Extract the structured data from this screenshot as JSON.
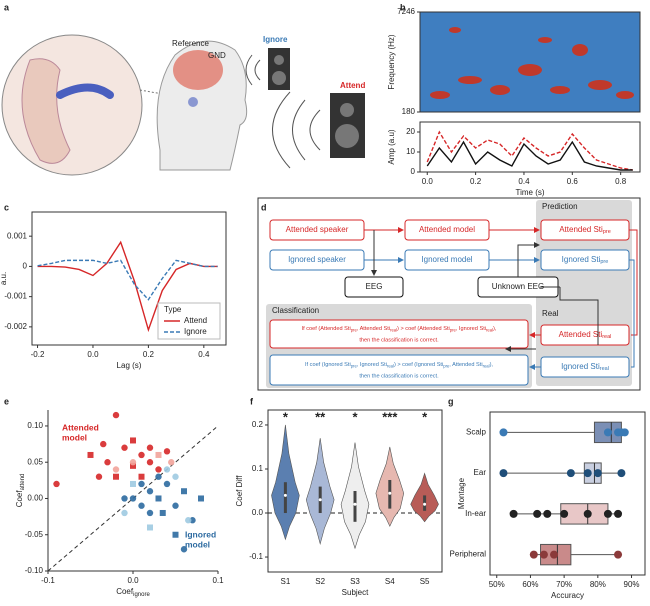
{
  "illustration": {
    "panel_label": "a",
    "reference": "Reference",
    "gnd": "GND",
    "ignore": "Ignore",
    "attend": "Attend"
  },
  "diagram": {
    "panel_label": "d",
    "attended_speaker": "Attended speaker",
    "attended_model": "Attended model",
    "ignored_speaker": "Ignored speaker",
    "ignored_model": "Ignored model",
    "prediction": "Prediction",
    "real": "Real",
    "eeg": "EEG",
    "unknown_eeg": "Unknown EEG",
    "classification": "Classification",
    "attended_sti_pre": {
      "text": "Attended Sti",
      "sub": "pre"
    },
    "ignored_sti_pre": {
      "text": "Ignored Sti",
      "sub": "pre"
    },
    "attended_sti_real": {
      "text": "Attended Sti",
      "sub": "real"
    },
    "ignored_sti_real": {
      "text": "Ignored Sti",
      "sub": "real"
    },
    "rule_attend": {
      "parts": [
        "If coef (Attended Sti",
        "pre",
        ", Attended Sti",
        "real",
        ") > coef (Attended Sti",
        "pre",
        ", Ignored Sti",
        "real",
        "),"
      ],
      "conclusion": "then the classification is correct."
    },
    "rule_ignore": {
      "parts": [
        "If coef (Ignored Sti",
        "pre",
        ", Ignored Sti",
        "real",
        ") > coef (Ignored Sti",
        "pre",
        ", Attended Sti",
        "real",
        "),"
      ],
      "conclusion": "then the classification is correct."
    }
  },
  "chart_data": [
    {
      "type": "heatmap",
      "panel_label": "b",
      "ylabel": "Frequency (Hz)",
      "ylim": [
        180,
        7246
      ],
      "yticks": [
        180,
        7246
      ]
    },
    {
      "type": "line",
      "ylabel": "Amp (a.u)",
      "xlabel": "Time (s)",
      "xlim": [
        -0.03,
        0.88
      ],
      "xticks": [
        {
          "value": 0,
          "label": "0.0"
        },
        0.2,
        0.4,
        0.6,
        0.8
      ],
      "ylim": [
        0,
        25
      ],
      "yticks": [
        0,
        10,
        20
      ],
      "x": [
        0,
        0.05,
        0.1,
        0.15,
        0.2,
        0.25,
        0.3,
        0.35,
        0.4,
        0.45,
        0.5,
        0.55,
        0.6,
        0.65,
        0.7,
        0.75,
        0.8,
        0.85
      ],
      "series": [
        {
          "color": "#d62728",
          "linestyle": "dashed",
          "values": [
            5,
            20,
            10,
            18,
            12,
            16,
            14,
            8,
            17,
            12,
            8,
            10,
            19,
            12,
            6,
            4,
            2,
            1
          ]
        },
        {
          "color": "#111111",
          "linestyle": "solid",
          "values": [
            3,
            12,
            5,
            15,
            4,
            10,
            6,
            3,
            14,
            8,
            4,
            6,
            15,
            5,
            3,
            2,
            1,
            1
          ]
        }
      ]
    },
    {
      "type": "line",
      "panel_label": "c",
      "ylabel": "a.u.",
      "xlabel": "Lag (s)",
      "xlim": [
        -0.22,
        0.48
      ],
      "xticks": [
        -0.2,
        {
          "value": 0,
          "label": "0.0"
        },
        0.2,
        0.4
      ],
      "ylim": [
        -0.0026,
        0.0018
      ],
      "yticks": [
        0.001,
        0,
        -0.001,
        -0.002
      ],
      "legend": "lower right",
      "legend_title": "Type",
      "x": [
        -0.2,
        -0.15,
        -0.1,
        -0.05,
        0,
        0.05,
        0.1,
        0.15,
        0.2,
        0.25,
        0.3,
        0.35,
        0.4,
        0.45
      ],
      "series": [
        {
          "name": "Attend",
          "color": "#d62728",
          "linestyle": "solid",
          "values": [
            0,
            0,
            -2e-05,
            -0.0001,
            -0.0003,
            0.0001,
            0.0008,
            -0.0005,
            -0.0021,
            -0.0008,
            -0.0001,
            0.0001,
            0,
            0
          ]
        },
        {
          "name": "Ignore",
          "color": "#3a7ab5",
          "linestyle": "dashed",
          "values": [
            2e-05,
            0.0001,
            0.0002,
            0.0002,
            0.0002,
            0.0001,
            0.0002,
            -0.0006,
            -0.0011,
            -0.0004,
            0.0002,
            0.0001,
            0,
            0
          ]
        }
      ]
    },
    {
      "type": "scatter",
      "panel_label": "e",
      "xlabel": "Coef",
      "xlabel_sub": "ignore",
      "ylabel": "Coef",
      "ylabel_sub": "attend",
      "xlim": [
        -0.1,
        0.1
      ],
      "xticks": [
        -0.1,
        {
          "value": 0,
          "label": "0.0"
        },
        0.1
      ],
      "ylim": [
        -0.1,
        0.122
      ],
      "yticks": [
        {
          "value": 0.1,
          "label": "0.10"
        },
        0.05,
        {
          "value": 0,
          "label": "0.00"
        },
        -0.05,
        {
          "value": -0.1,
          "label": "-0.10"
        }
      ],
      "annotation_attend": [
        "Attended",
        "model"
      ],
      "annotation_ignore": [
        "Ignored",
        "model"
      ],
      "series": [
        {
          "color": "#d62728",
          "x": [
            -0.02,
            -0.05,
            -0.03,
            -0.01,
            0,
            0.01,
            0.02,
            -0.02,
            0.03,
            -0.04,
            0,
            0.02,
            -0.09,
            0.01,
            0.04,
            -0.035
          ],
          "y": [
            0.115,
            0.06,
            0.05,
            0.07,
            0.045,
            0.06,
            0.05,
            0.03,
            0.04,
            0.03,
            0.08,
            0.07,
            0.02,
            0.03,
            0.065,
            0.075
          ]
        },
        {
          "color": "#f2a39a",
          "x": [
            0,
            0.03,
            -0.02,
            0.045
          ],
          "y": [
            0.05,
            0.06,
            0.04,
            0.05
          ]
        },
        {
          "color": "#2c6aa0",
          "x": [
            0.02,
            0.03,
            0.05,
            0.04,
            0.06,
            0.01,
            0.07,
            0.05,
            0,
            0.03,
            0.08,
            0.02,
            0.06,
            0.035,
            0.01,
            -0.01
          ],
          "y": [
            -0.02,
            0,
            -0.01,
            0.02,
            0.01,
            -0.01,
            -0.03,
            -0.05,
            0,
            0.03,
            0,
            0.01,
            -0.07,
            -0.02,
            0.02,
            0
          ]
        },
        {
          "color": "#9ecae1",
          "x": [
            0.04,
            0,
            0.05,
            -0.01,
            0.02,
            0.065
          ],
          "y": [
            0.04,
            0.02,
            0.03,
            -0.02,
            -0.04,
            -0.03
          ]
        }
      ]
    },
    {
      "type": "violin",
      "panel_label": "f",
      "ylabel": "Coef Diff",
      "xlabel": "Subject",
      "categories": [
        "S1",
        "S2",
        "S3",
        "S4",
        "S5"
      ],
      "significance": [
        "*",
        "**",
        "*",
        "***",
        "*"
      ],
      "ylim": [
        -0.134,
        0.234
      ],
      "yticks": [
        0.2,
        0.1,
        {
          "value": 0,
          "label": "0.0"
        },
        -0.1
      ],
      "violins": [
        {
          "min": -0.06,
          "q1": 0,
          "median": 0.04,
          "q3": 0.07,
          "max": 0.2,
          "color": "#5b7fb0"
        },
        {
          "min": -0.07,
          "q1": 0,
          "median": 0.03,
          "q3": 0.06,
          "max": 0.17,
          "color": "#a9b8d6"
        },
        {
          "min": -0.08,
          "q1": -0.02,
          "median": 0.02,
          "q3": 0.05,
          "max": 0.16,
          "color": "#eeeeee"
        },
        {
          "min": -0.03,
          "q1": 0.01,
          "median": 0.045,
          "q3": 0.075,
          "max": 0.15,
          "color": "#e6b8b0"
        },
        {
          "min": -0.02,
          "q1": 0.005,
          "median": 0.02,
          "q3": 0.04,
          "max": 0.09,
          "color": "#b85c57"
        }
      ]
    },
    {
      "type": "box",
      "panel_label": "g",
      "ylabel": "Montage",
      "xlabel": "Accuracy",
      "categories": [
        "Scalp",
        "Ear",
        "In-ear",
        "Peripheral"
      ],
      "xlim": [
        48,
        94
      ],
      "xticks": [
        {
          "value": 50,
          "label": "50%"
        },
        {
          "value": 60,
          "label": "60%"
        },
        {
          "value": 70,
          "label": "70%"
        },
        {
          "value": 80,
          "label": "80%"
        },
        {
          "value": 90,
          "label": "90%"
        }
      ],
      "boxes": [
        {
          "q1": 79,
          "median": 84,
          "q3": 87,
          "whisker_low": 52,
          "whisker_high": 88,
          "color": "#7b8fb5",
          "point_color": "#3a7ab5",
          "points": [
            52,
            83,
            86,
            87,
            88
          ]
        },
        {
          "q1": 76,
          "median": 79,
          "q3": 81,
          "whisker_low": 52,
          "whisker_high": 87,
          "color": "#c9cfe0",
          "point_color": "#1f4e79",
          "points": [
            52,
            72,
            77,
            80,
            87
          ]
        },
        {
          "q1": 69,
          "median": 77,
          "q3": 83,
          "whisker_low": 55,
          "whisker_high": 86,
          "color": "#e8c7c7",
          "point_color": "#222222",
          "points": [
            55,
            62,
            65,
            70,
            77,
            83,
            86
          ]
        },
        {
          "q1": 63,
          "median": 68,
          "q3": 72,
          "whisker_low": 60,
          "whisker_high": 86,
          "color": "#c98a8a",
          "point_color": "#8b3a3a",
          "points": [
            61,
            64,
            67,
            86
          ]
        }
      ]
    }
  ]
}
